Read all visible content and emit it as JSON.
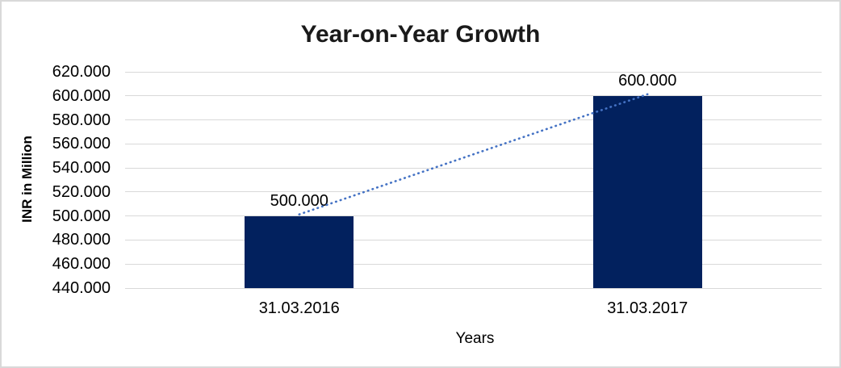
{
  "window": {
    "background": "#ffffff",
    "border_color": "#d9d9d9"
  },
  "chart_data": {
    "type": "bar",
    "title": "Year-on-Year Growth",
    "xlabel": "Years",
    "ylabel": "INR in Million",
    "categories": [
      "31.03.2016",
      "31.03.2017"
    ],
    "values": [
      500000,
      600000
    ],
    "data_labels": [
      "500.000",
      "600.000"
    ],
    "y_ticks": [
      {
        "value": 620000,
        "label": "620.000"
      },
      {
        "value": 600000,
        "label": "600.000"
      },
      {
        "value": 580000,
        "label": "580.000"
      },
      {
        "value": 560000,
        "label": "560.000"
      },
      {
        "value": 540000,
        "label": "540.000"
      },
      {
        "value": 520000,
        "label": "520.000"
      },
      {
        "value": 500000,
        "label": "500.000"
      },
      {
        "value": 480000,
        "label": "480.000"
      },
      {
        "value": 460000,
        "label": "460.000"
      },
      {
        "value": 440000,
        "label": "440.000"
      }
    ],
    "ylim": [
      440000,
      620000
    ],
    "grid": "horizontal",
    "legend": "none",
    "trendline": {
      "style": "dotted",
      "color": "#4472c4",
      "from_value": 500000,
      "to_value": 600000
    },
    "colors": {
      "bar": "#02215e",
      "gridline": "#d9d9d9",
      "axis_line": "#d9d9d9",
      "text": "#000000",
      "title_text": "#1a1a1a"
    }
  }
}
